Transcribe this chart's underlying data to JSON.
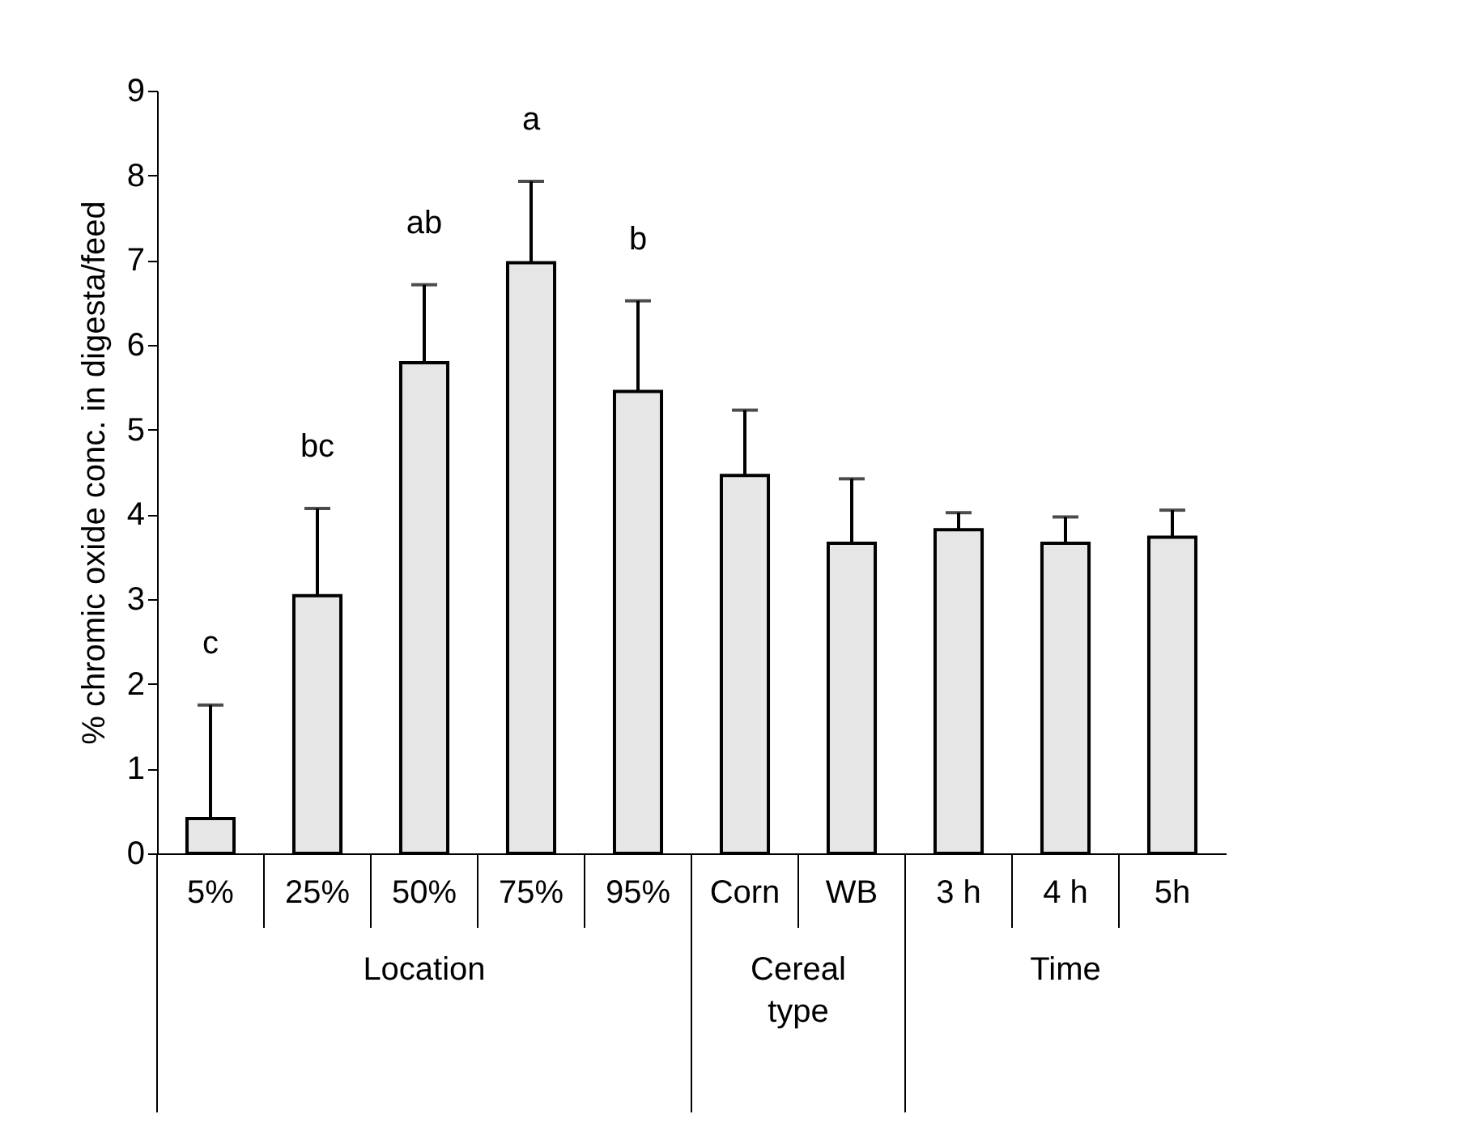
{
  "chart_data": {
    "type": "bar",
    "ylabel": "% chromic oxide conc. in digesta/feed",
    "categories": [
      "5%",
      "25%",
      "50%",
      "75%",
      "95%",
      "Corn",
      "WB",
      "3 h",
      "4 h",
      "5h"
    ],
    "values": [
      0.41,
      3.04,
      5.79,
      6.97,
      5.45,
      4.46,
      3.66,
      3.82,
      3.66,
      3.73
    ],
    "errors": [
      [
        0.41,
        1.75
      ],
      [
        3.04,
        4.07
      ],
      [
        5.79,
        6.71
      ],
      [
        6.97,
        7.93
      ],
      [
        5.45,
        6.52
      ],
      [
        4.46,
        5.23
      ],
      [
        3.66,
        4.42
      ],
      [
        3.82,
        4.02
      ],
      [
        3.66,
        3.97
      ],
      [
        3.73,
        4.05
      ]
    ],
    "color": "#e6e6e6",
    "ylim": [
      0,
      9
    ],
    "yticks": [
      0,
      1,
      2,
      3,
      4,
      5,
      6,
      7,
      8,
      9
    ],
    "grid": false,
    "annotations": [
      "c",
      "bc",
      "ab",
      "a",
      "b",
      "Location",
      "Cereal type",
      "Time"
    ]
  }
}
